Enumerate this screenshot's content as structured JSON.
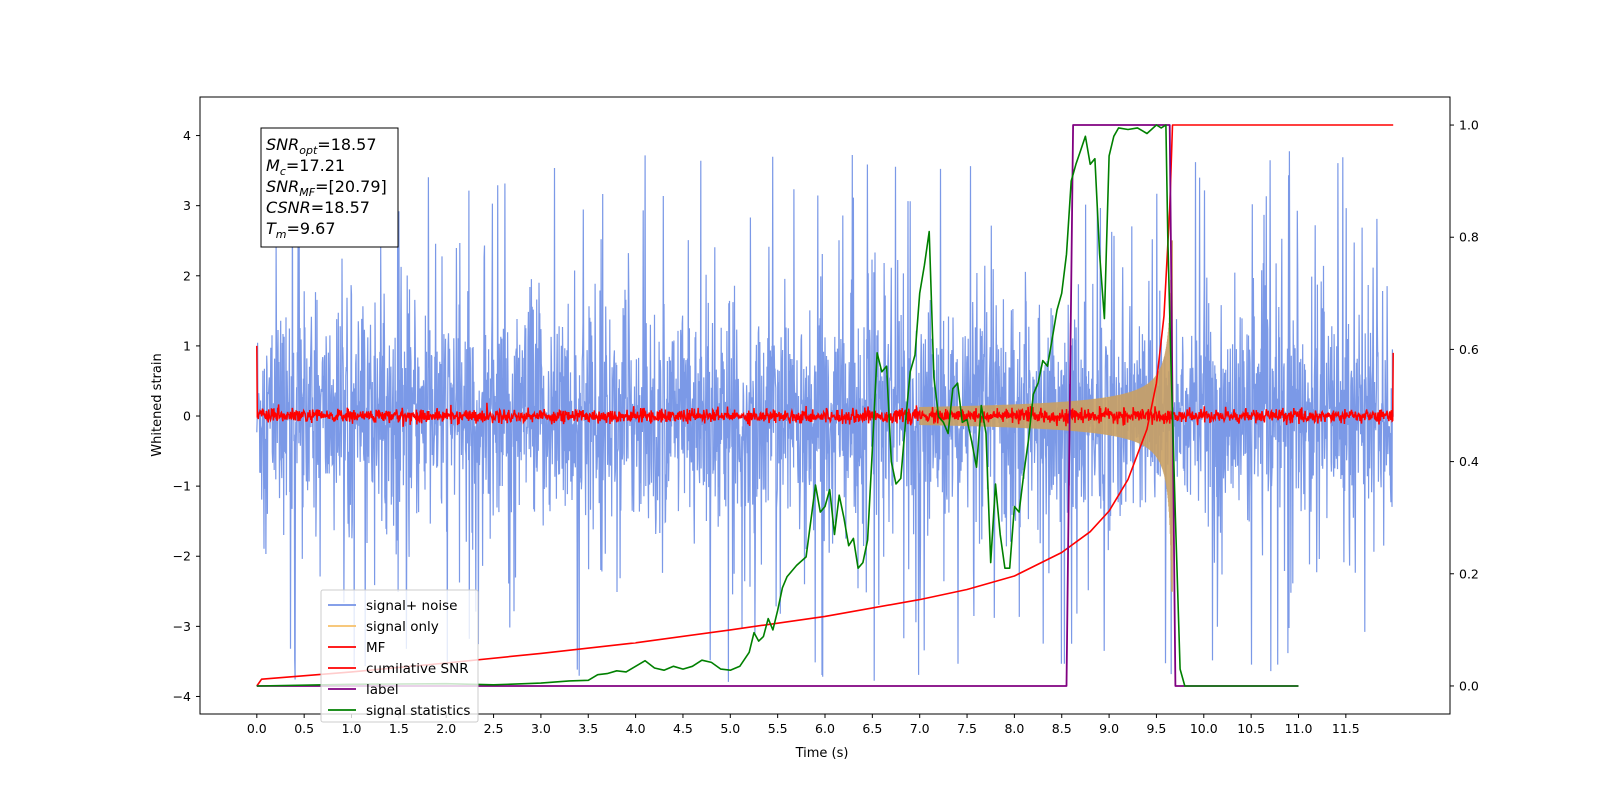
{
  "chart_data": {
    "type": "line",
    "xlabel": "Time (s)",
    "ylabel": "Whitened strain",
    "xlim": [
      -0.6,
      12.6
    ],
    "ylim": [
      -4.25,
      4.55
    ],
    "y2lim": [
      -0.05,
      1.05
    ],
    "xticks": [
      "0.0",
      "0.5",
      "1.0",
      "1.5",
      "2.0",
      "2.5",
      "3.0",
      "3.5",
      "4.0",
      "4.5",
      "5.0",
      "5.5",
      "6.0",
      "6.5",
      "7.0",
      "7.5",
      "8.0",
      "8.5",
      "9.0",
      "9.5",
      "10.0",
      "10.5",
      "11.0",
      "11.5"
    ],
    "yticks": [
      "−4",
      "−3",
      "−2",
      "−1",
      "0",
      "1",
      "2",
      "3",
      "4"
    ],
    "y2ticks": [
      "0.0",
      "0.2",
      "0.4",
      "0.6",
      "0.8",
      "1.0"
    ],
    "stats_box": [
      {
        "base": "SNR",
        "sub": "opt",
        "value": "=18.57"
      },
      {
        "base": "M",
        "sub": "c",
        "value": "=17.21"
      },
      {
        "base": "SNR",
        "sub": "MF",
        "value": "=[20.79]"
      },
      {
        "base": "CSNR",
        "sub": "",
        "value": "=18.57"
      },
      {
        "base": "T",
        "sub": "m",
        "value": "=9.67"
      }
    ],
    "legend_position": "lower-left",
    "series": [
      {
        "name": "signal+ noise",
        "color": "#7493e6",
        "axis": "left",
        "kind": "noise",
        "x_range": [
          0,
          12
        ],
        "amplitude": 1.3,
        "spike_max": 3.8
      },
      {
        "name": "signal only",
        "color": "#c9a063",
        "axis": "left",
        "kind": "chirp",
        "x_range": [
          7.0,
          9.67
        ],
        "peak_amplitude": 3.9
      },
      {
        "name": "MF",
        "color": "#ff0000",
        "axis": "left",
        "kind": "noise",
        "x_range": [
          0,
          12
        ],
        "amplitude": 0.05,
        "edge_values": [
          1.0,
          0.9
        ]
      },
      {
        "name": "cumilative SNR",
        "color": "#ff0000",
        "axis": "right",
        "x": [
          0,
          0.05,
          1,
          2,
          3,
          4,
          5,
          6,
          7,
          7.5,
          8,
          8.5,
          8.8,
          9.0,
          9.2,
          9.4,
          9.5,
          9.58,
          9.64,
          9.67,
          12
        ],
        "y": [
          0.0,
          0.012,
          0.025,
          0.041,
          0.058,
          0.077,
          0.1,
          0.124,
          0.154,
          0.172,
          0.196,
          0.238,
          0.275,
          0.312,
          0.368,
          0.458,
          0.54,
          0.66,
          0.85,
          1.0,
          1.0
        ]
      },
      {
        "name": "label",
        "color": "#800080",
        "axis": "right",
        "x": [
          0,
          8.55,
          8.62,
          9.64,
          9.7,
          11.0
        ],
        "y": [
          0.0,
          0.0,
          1.0,
          1.0,
          0.0,
          0.0
        ]
      },
      {
        "name": "signal statistics",
        "color": "#008000",
        "axis": "right",
        "x": [
          0,
          1,
          2,
          2.5,
          3,
          3.3,
          3.5,
          3.6,
          3.7,
          3.8,
          3.9,
          4.0,
          4.1,
          4.2,
          4.3,
          4.4,
          4.5,
          4.6,
          4.7,
          4.8,
          4.9,
          5.0,
          5.1,
          5.2,
          5.25,
          5.3,
          5.35,
          5.4,
          5.45,
          5.5,
          5.55,
          5.6,
          5.7,
          5.8,
          5.9,
          5.95,
          6.0,
          6.05,
          6.1,
          6.15,
          6.2,
          6.25,
          6.3,
          6.35,
          6.4,
          6.45,
          6.5,
          6.55,
          6.6,
          6.65,
          6.7,
          6.75,
          6.8,
          6.85,
          6.9,
          6.95,
          7.0,
          7.05,
          7.1,
          7.15,
          7.2,
          7.25,
          7.3,
          7.35,
          7.4,
          7.45,
          7.5,
          7.55,
          7.6,
          7.65,
          7.7,
          7.75,
          7.8,
          7.85,
          7.9,
          7.95,
          8.0,
          8.05,
          8.1,
          8.15,
          8.2,
          8.25,
          8.3,
          8.35,
          8.4,
          8.45,
          8.5,
          8.55,
          8.6,
          8.65,
          8.7,
          8.75,
          8.8,
          8.85,
          8.9,
          8.95,
          9.0,
          9.05,
          9.1,
          9.2,
          9.3,
          9.4,
          9.5,
          9.55,
          9.6,
          9.62,
          9.65,
          9.7,
          9.75,
          9.8,
          10.0,
          11.0
        ],
        "y": [
          0.0,
          0.003,
          0.004,
          0.002,
          0.005,
          0.009,
          0.01,
          0.02,
          0.022,
          0.027,
          0.025,
          0.035,
          0.045,
          0.032,
          0.028,
          0.035,
          0.03,
          0.035,
          0.046,
          0.042,
          0.03,
          0.028,
          0.035,
          0.06,
          0.095,
          0.08,
          0.088,
          0.12,
          0.1,
          0.135,
          0.175,
          0.195,
          0.215,
          0.23,
          0.358,
          0.31,
          0.32,
          0.35,
          0.27,
          0.34,
          0.3,
          0.25,
          0.263,
          0.21,
          0.22,
          0.26,
          0.42,
          0.594,
          0.56,
          0.57,
          0.4,
          0.36,
          0.37,
          0.47,
          0.56,
          0.59,
          0.7,
          0.75,
          0.81,
          0.55,
          0.48,
          0.47,
          0.45,
          0.53,
          0.54,
          0.47,
          0.475,
          0.435,
          0.39,
          0.5,
          0.45,
          0.22,
          0.36,
          0.27,
          0.21,
          0.21,
          0.32,
          0.31,
          0.38,
          0.44,
          0.52,
          0.54,
          0.58,
          0.57,
          0.62,
          0.67,
          0.7,
          0.77,
          0.9,
          0.93,
          0.955,
          0.98,
          0.93,
          0.94,
          0.77,
          0.655,
          0.945,
          0.98,
          0.995,
          0.992,
          0.995,
          0.985,
          1.0,
          0.995,
          1.0,
          0.8,
          0.6,
          0.3,
          0.03,
          0.0,
          0.0,
          0.0
        ]
      }
    ]
  }
}
